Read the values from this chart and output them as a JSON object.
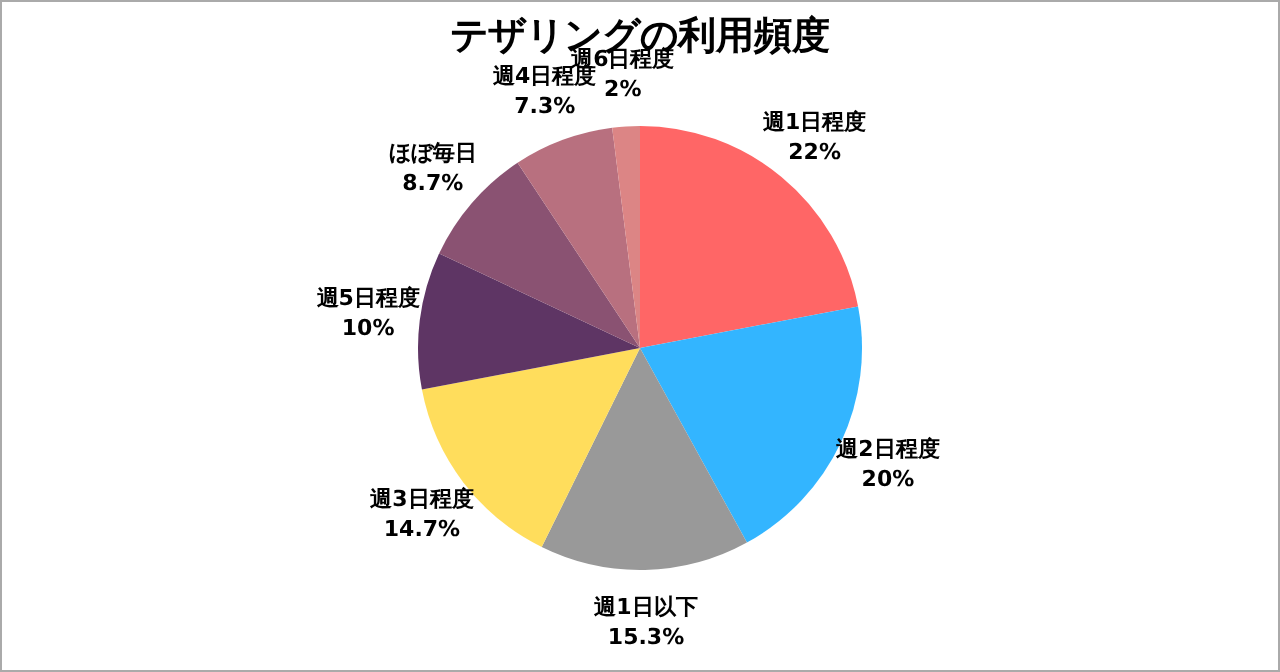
{
  "chart_data": {
    "type": "pie",
    "title": "テザリングの利用頻度",
    "categories": [
      "週1日程度",
      "週2日程度",
      "週1日以下",
      "週3日程度",
      "週5日程度",
      "ほぼ毎日",
      "週4日程度",
      "週6日程度"
    ],
    "values": [
      22,
      20,
      15.3,
      14.7,
      10,
      8.7,
      7.3,
      2
    ],
    "colors": [
      "#ff6666",
      "#33b5ff",
      "#999999",
      "#ffdd5c",
      "#5e3564",
      "#8a5272",
      "#b8707f",
      "#dc8585"
    ],
    "value_labels": [
      "22%",
      "20%",
      "15.3%",
      "14.7%",
      "10%",
      "8.7%",
      "7.3%",
      "2%"
    ],
    "legend": false
  }
}
